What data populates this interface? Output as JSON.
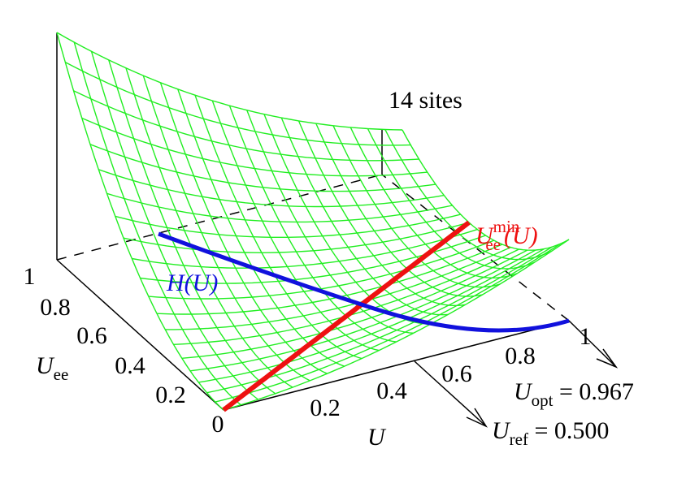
{
  "title": "14 sites",
  "u_axis": {
    "label": "U",
    "ticks": [
      "0.2",
      "0.4",
      "0.6",
      "0.8",
      "1"
    ]
  },
  "uee_axis": {
    "label": "U",
    "label_sub": "ee",
    "ticks": [
      "0",
      "0.2",
      "0.4",
      "0.6",
      "0.8",
      "1"
    ]
  },
  "curves": [
    {
      "label": "H(U)"
    },
    {
      "main": "U",
      "sub": "ee",
      "sup": "min",
      "arg": "(U)"
    }
  ],
  "annotations": [
    {
      "main": "U",
      "sub": "opt",
      "rest": " = 0.967"
    },
    {
      "main": "U",
      "sub": "ref",
      "rest": " = 0.500"
    }
  ]
}
